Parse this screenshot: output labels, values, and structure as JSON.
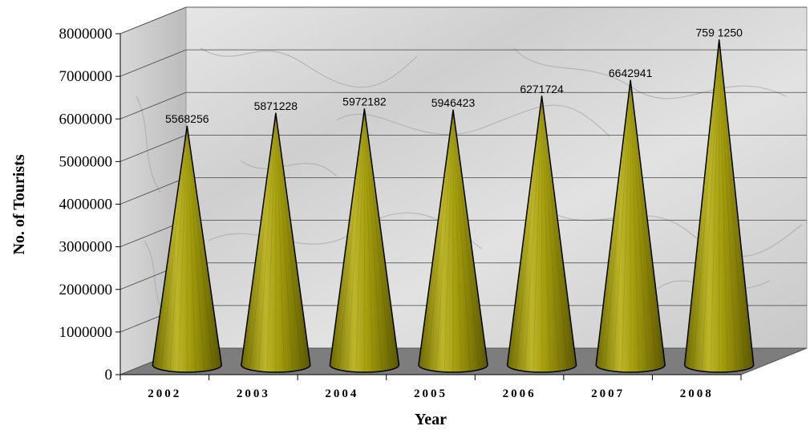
{
  "chart_data": {
    "type": "bar",
    "style": "3d-cone",
    "categories": [
      "2002",
      "2003",
      "2004",
      "2005",
      "2006",
      "2007",
      "2008"
    ],
    "values": [
      5568256,
      5871228,
      5972182,
      5946423,
      6271724,
      6642941,
      7591250
    ],
    "data_labels": [
      "5568256",
      "5871228",
      "5972182",
      "5946423",
      "6271724",
      "6642941",
      "759 1250"
    ],
    "xlabel": "Year",
    "ylabel": "No. of Tourists",
    "ylim": [
      0,
      8000000
    ],
    "yticks": [
      "0",
      "1000000",
      "2000000",
      "3000000",
      "4000000",
      "5000000",
      "6000000",
      "7000000",
      "8000000"
    ],
    "grid": true,
    "legend": "none",
    "colors": {
      "cone": "#9a9400",
      "cone_light": "#c9c23a",
      "cone_dark": "#5a5600",
      "floor": "#7d7d7d",
      "wall": "#dcdcdc"
    }
  }
}
